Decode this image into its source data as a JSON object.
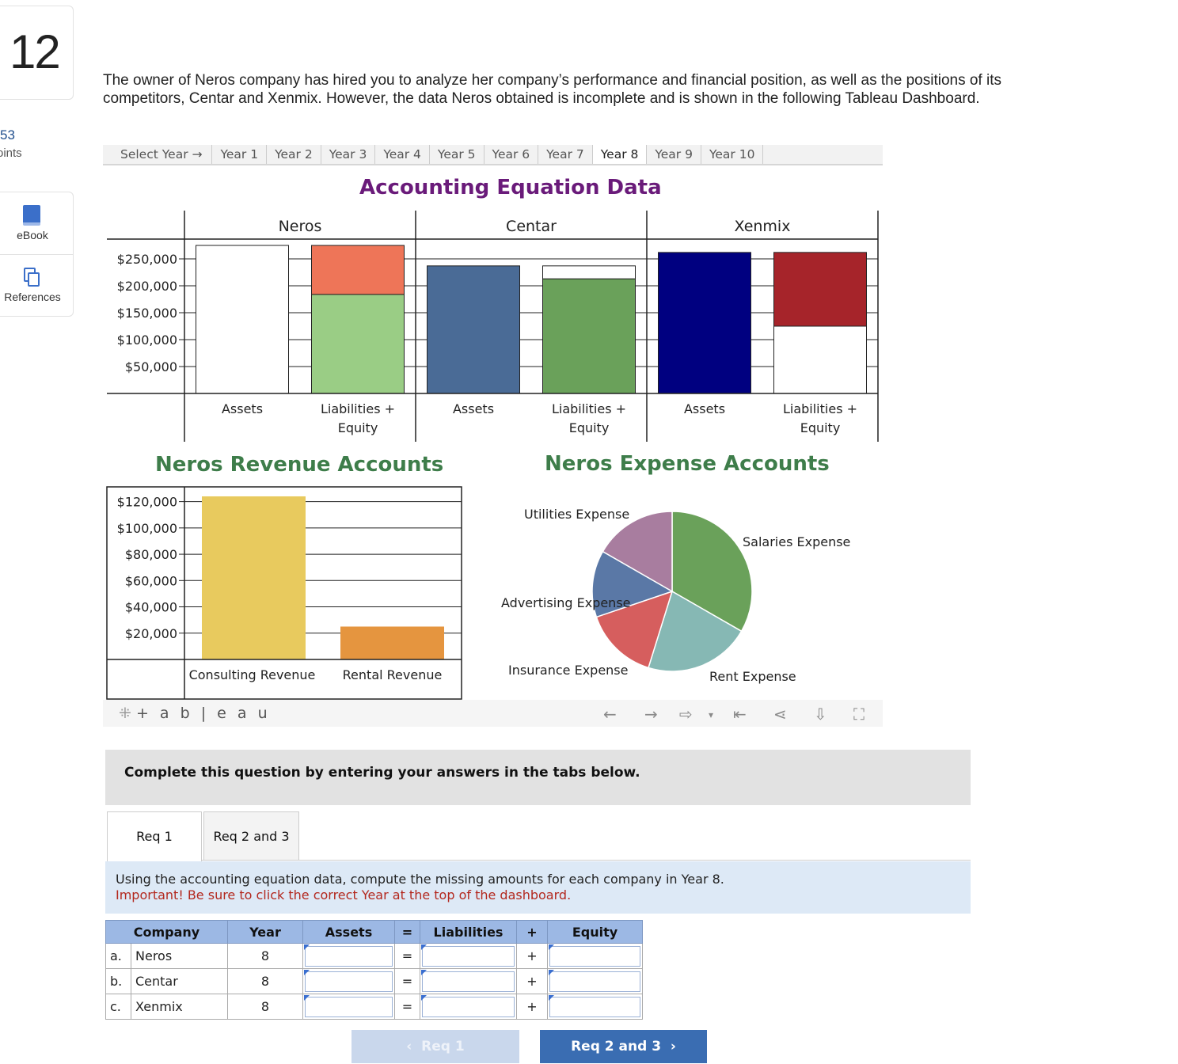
{
  "question": {
    "number": "12",
    "points_value": "53",
    "points_label": "oints"
  },
  "rail": {
    "ebook_label": "eBook",
    "references_label": "References"
  },
  "intro_text": "The owner of Neros company has hired you to analyze her company’s performance and financial position, as well as the positions of its competitors, Centar and Xenmix. However, the data Neros obtained is incomplete and is shown in the following Tableau Dashboard.",
  "year_selector": {
    "label": "Select Year →",
    "years": [
      "Year 1",
      "Year 2",
      "Year 3",
      "Year 4",
      "Year 5",
      "Year 6",
      "Year 7",
      "Year 8",
      "Year 9",
      "Year 10"
    ],
    "selected": "Year 8"
  },
  "colors": {
    "title_purple": "#6a1b7a",
    "title_green": "#3e7d4a"
  },
  "chart_data": [
    {
      "type": "bar",
      "title": "Accounting Equation Data",
      "panels": [
        "Neros",
        "Centar",
        "Xenmix"
      ],
      "categories": [
        "Assets",
        "Liabilities + Equity"
      ],
      "y_ticks": [
        "$250,000",
        "$200,000",
        "$150,000",
        "$100,000",
        "$50,000"
      ],
      "ylim": [
        0,
        275000
      ],
      "bars": [
        {
          "company": "Neros",
          "category": "Assets",
          "segments": [
            {
              "value": 275000,
              "color": "#ffffff"
            }
          ]
        },
        {
          "company": "Neros",
          "category": "Liabilities + Equity",
          "segments": [
            {
              "value": 184000,
              "color": "#9acd85"
            },
            {
              "value": 91000,
              "color": "#ee7558"
            }
          ]
        },
        {
          "company": "Centar",
          "category": "Assets",
          "segments": [
            {
              "value": 237000,
              "color": "#4a6b96"
            }
          ]
        },
        {
          "company": "Centar",
          "category": "Liabilities + Equity",
          "segments": [
            {
              "value": 213000,
              "color": "#6aa15a"
            },
            {
              "value": 24000,
              "color": "#ffffff"
            }
          ]
        },
        {
          "company": "Xenmix",
          "category": "Assets",
          "segments": [
            {
              "value": 262000,
              "color": "#000080"
            }
          ]
        },
        {
          "company": "Xenmix",
          "category": "Liabilities + Equity",
          "segments": [
            {
              "value": 125000,
              "color": "#ffffff"
            },
            {
              "value": 137000,
              "color": "#a6242a"
            }
          ]
        }
      ]
    },
    {
      "type": "bar",
      "title": "Neros Revenue Accounts",
      "categories": [
        "Consulting Revenue",
        "Rental Revenue"
      ],
      "values": [
        124000,
        25000
      ],
      "colors": [
        "#e8ca5e",
        "#e5953f"
      ],
      "y_ticks": [
        "$120,000",
        "$100,000",
        "$80,000",
        "$60,000",
        "$40,000",
        "$20,000"
      ],
      "ylim": [
        0,
        130000
      ]
    },
    {
      "type": "pie",
      "title": "Neros Expense Accounts",
      "slices": [
        {
          "label": "Salaries Expense",
          "value": 0.333,
          "color": "#6aa15a"
        },
        {
          "label": "Rent Expense",
          "value": 0.215,
          "color": "#86b8b4"
        },
        {
          "label": "Insurance Expense",
          "value": 0.15,
          "color": "#d65e5e"
        },
        {
          "label": "Advertising Expense",
          "value": 0.135,
          "color": "#5a78a6"
        },
        {
          "label": "Utilities Expense",
          "value": 0.167,
          "color": "#a87d9f"
        }
      ]
    }
  ],
  "tableau": {
    "logo": "+ a b | e a u"
  },
  "banner": "Complete this question by entering your answers in the tabs below.",
  "tabs": [
    "Req 1",
    "Req 2 and 3"
  ],
  "instructions": {
    "line1": "Using the accounting equation data, compute the missing amounts for each company in Year 8.",
    "line2": "Important! Be sure to click the correct Year at the top of the dashboard."
  },
  "answer_table": {
    "headers": [
      "Company",
      "Year",
      "Assets",
      "=",
      "Liabilities",
      "+",
      "Equity"
    ],
    "rows": [
      {
        "letter": "a.",
        "company": "Neros",
        "year": "8",
        "eq": "=",
        "plus": "+"
      },
      {
        "letter": "b.",
        "company": "Centar",
        "year": "8",
        "eq": "=",
        "plus": "+"
      },
      {
        "letter": "c.",
        "company": "Xenmix",
        "year": "8",
        "eq": "=",
        "plus": "+"
      }
    ]
  },
  "nav": {
    "prev_label": "Req 1",
    "next_label": "Req 2 and 3"
  }
}
